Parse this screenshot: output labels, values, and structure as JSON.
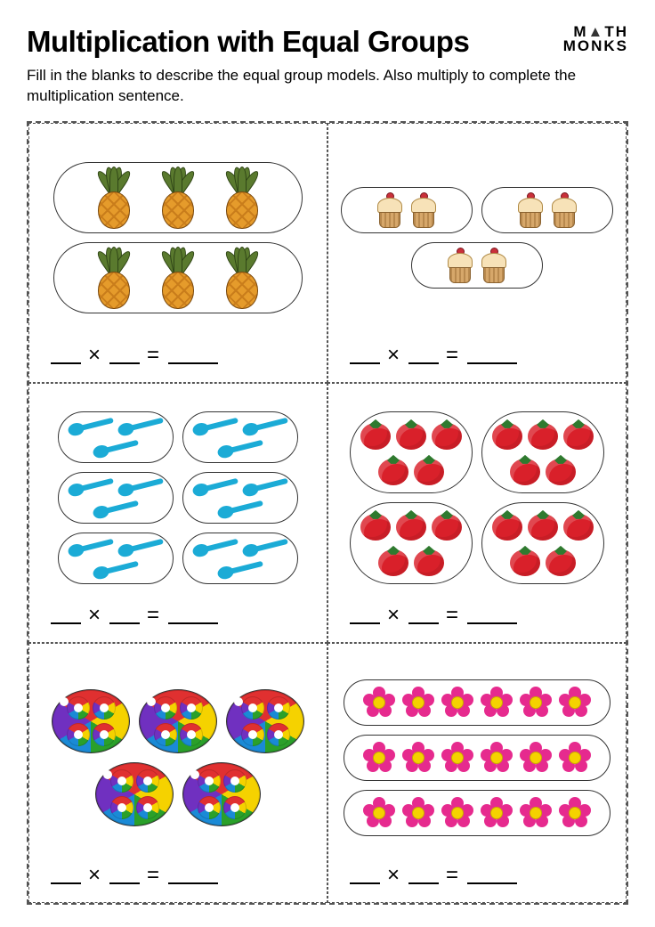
{
  "header": {
    "title": "Multiplication with Equal Groups",
    "logo_line1": "M",
    "logo_tri": "▲",
    "logo_line1b": "TH",
    "logo_line2": "MONKS",
    "instructions": "Fill in the blanks to describe the equal group models. Also multiply to complete the multiplication sentence."
  },
  "equation": {
    "times": "×",
    "equals": "="
  },
  "problems": [
    {
      "icon": "pineapple",
      "pill_class": "wide",
      "groups": 2,
      "per_group": 3,
      "row_wrap": "column"
    },
    {
      "icon": "cupcake",
      "pill_class": "small",
      "groups": 3,
      "per_group": 2,
      "row_wrap": "row"
    },
    {
      "icon": "spoon",
      "pill_class": "med",
      "groups": 6,
      "per_group": 3,
      "row_wrap": "row"
    },
    {
      "icon": "tomato",
      "pill_class": "tom",
      "groups": 4,
      "per_group": 5,
      "row_wrap": "row"
    },
    {
      "icon": "ball",
      "pill_class": "ball",
      "groups": 5,
      "per_group": 4,
      "row_wrap": "row"
    },
    {
      "icon": "flower",
      "pill_class": "flower",
      "groups": 3,
      "per_group": 6,
      "row_wrap": "column"
    }
  ],
  "colors": {
    "border": "#555555",
    "text": "#000000",
    "pineapple_body": "#e59b2b",
    "pineapple_leaf": "#5a7a2e",
    "cupcake_top": "#f7e2b8",
    "cupcake_base": "#d6a76a",
    "cherry": "#c9303a",
    "spoon": "#1babd6",
    "tomato": "#d9202a",
    "tomato_leaf": "#2f7a2f",
    "flower_petal": "#e62a8e",
    "flower_center": "#f5d200"
  }
}
